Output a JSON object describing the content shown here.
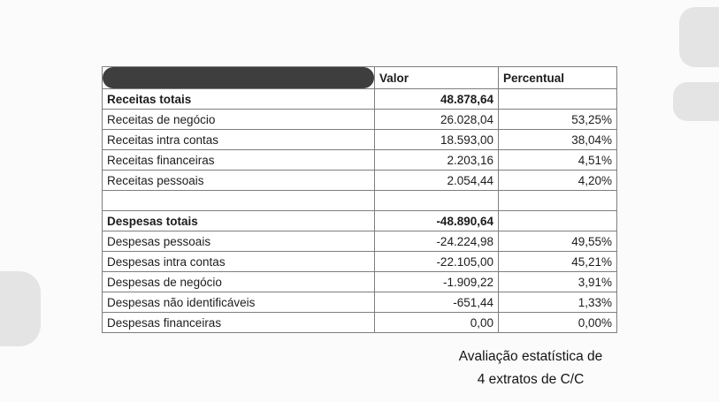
{
  "colors": {
    "redaction_bar": "#3e3e3e",
    "decorative_pills": "#e4e4e4",
    "table_border": "#7e7e7e"
  },
  "table": {
    "header": {
      "label": "",
      "valor": "Valor",
      "percentual": "Percentual"
    },
    "rows": [
      {
        "label": "Receitas totais",
        "valor": "48.878,64",
        "percentual": "",
        "bold": true
      },
      {
        "label": "Receitas de negócio",
        "valor": "26.028,04",
        "percentual": "53,25%"
      },
      {
        "label": "Receitas intra contas",
        "valor": "18.593,00",
        "percentual": "38,04%"
      },
      {
        "label": "Receitas financeiras",
        "valor": "2.203,16",
        "percentual": "4,51%"
      },
      {
        "label": "Receitas pessoais",
        "valor": "2.054,44",
        "percentual": "4,20%"
      },
      {
        "label": "",
        "valor": "",
        "percentual": "",
        "spacer": true
      },
      {
        "label": "Despesas totais",
        "valor": "-48.890,64",
        "percentual": "",
        "bold": true
      },
      {
        "label": "Despesas pessoais",
        "valor": "-24.224,98",
        "percentual": "49,55%"
      },
      {
        "label": "Despesas intra contas",
        "valor": "-22.105,00",
        "percentual": "45,21%"
      },
      {
        "label": "Despesas de negócio",
        "valor": "-1.909,22",
        "percentual": "3,91%"
      },
      {
        "label": "Despesas não identificáveis",
        "valor": "-651,44",
        "percentual": "1,33%"
      },
      {
        "label": "Despesas financeiras",
        "valor": "0,00",
        "percentual": "0,00%"
      }
    ]
  },
  "caption": {
    "line1": "Avaliação estatística de",
    "line2": "4 extratos de C/C"
  },
  "chart_data": {
    "type": "table",
    "title": "Avaliação estatística de 4 extratos de C/C",
    "columns": [
      "",
      "Valor",
      "Percentual"
    ],
    "rows": [
      [
        "Receitas totais",
        "48.878,64",
        ""
      ],
      [
        "Receitas de negócio",
        "26.028,04",
        "53,25%"
      ],
      [
        "Receitas intra contas",
        "18.593,00",
        "38,04%"
      ],
      [
        "Receitas financeiras",
        "2.203,16",
        "4,51%"
      ],
      [
        "Receitas pessoais",
        "2.054,44",
        "4,20%"
      ],
      [
        "",
        "",
        ""
      ],
      [
        "Despesas totais",
        "-48.890,64",
        ""
      ],
      [
        "Despesas pessoais",
        "-24.224,98",
        "49,55%"
      ],
      [
        "Despesas intra contas",
        "-22.105,00",
        "45,21%"
      ],
      [
        "Despesas de negócio",
        "-1.909,22",
        "3,91%"
      ],
      [
        "Despesas não identificáveis",
        "-651,44",
        "1,33%"
      ],
      [
        "Despesas financeiras",
        "0,00",
        "0,00%"
      ]
    ]
  }
}
